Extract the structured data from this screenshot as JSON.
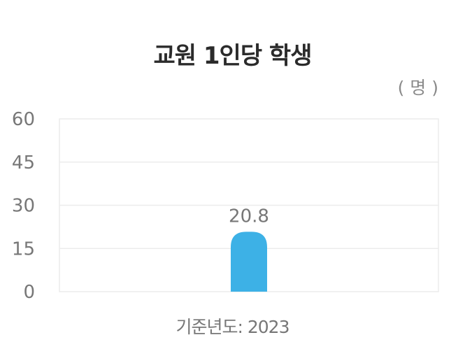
{
  "chart_data": {
    "type": "bar",
    "title": "교원 1인당 학생",
    "unit": "( 명 )",
    "categories": [
      "2023"
    ],
    "values": [
      20.8
    ],
    "data_labels": [
      "20.8"
    ],
    "ylim": [
      0,
      60
    ],
    "yticks": [
      0,
      15,
      30,
      45,
      60
    ],
    "grid": true,
    "bar_color": "#3db1e6",
    "footnote": "기준년도: 2023"
  }
}
